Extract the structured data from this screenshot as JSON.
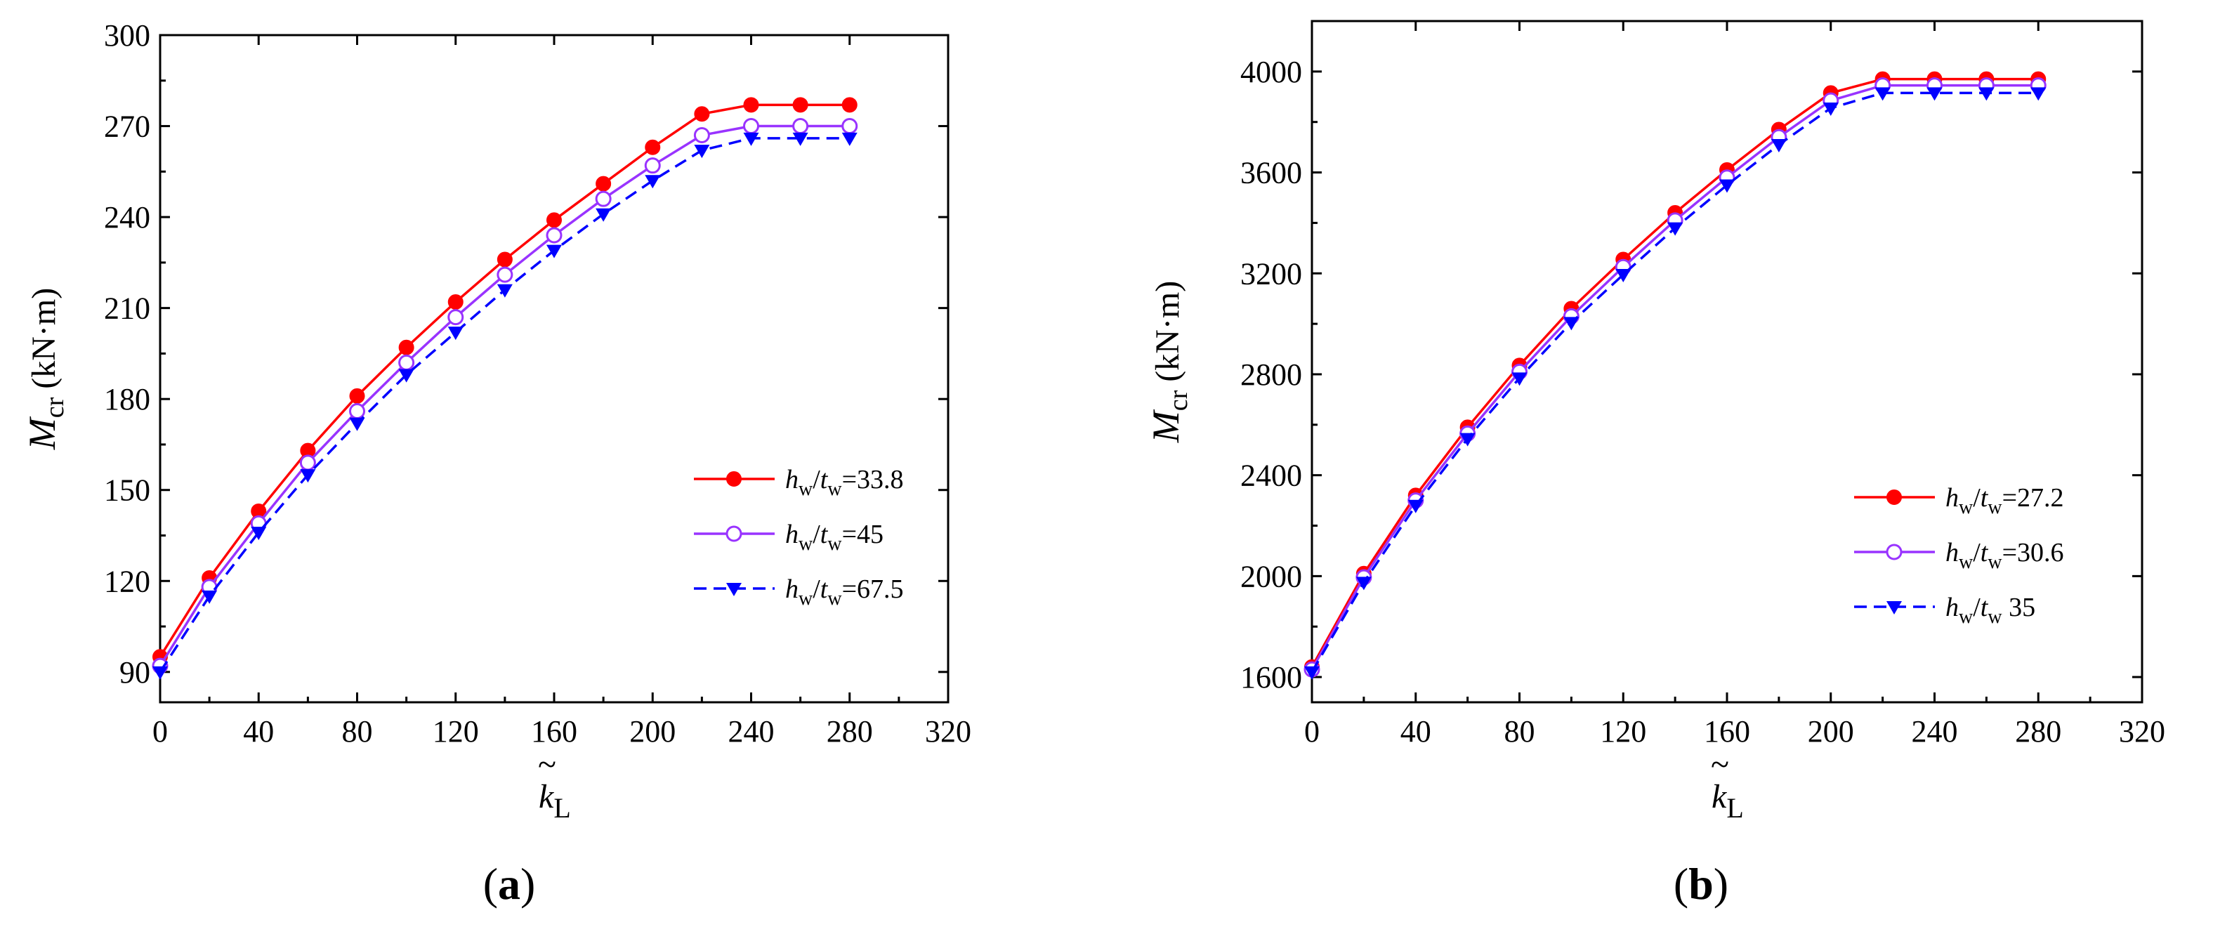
{
  "chart_data": [
    {
      "type": "line",
      "caption_open": "(",
      "caption_letter": "a",
      "caption_close": ")",
      "xlabel_main": "k",
      "xlabel_tilde": "~",
      "xlabel_sub": "L",
      "ylabel_main": "M",
      "ylabel_sub": "cr",
      "ylabel_unit": " (kN·m)",
      "xlim": [
        0,
        320
      ],
      "ylim": [
        80,
        300
      ],
      "xticks": [
        0,
        40,
        80,
        120,
        160,
        200,
        240,
        280,
        320
      ],
      "yticks": [
        90,
        120,
        150,
        180,
        210,
        240,
        270,
        300
      ],
      "x": [
        0,
        20,
        40,
        60,
        80,
        100,
        120,
        140,
        160,
        180,
        200,
        220,
        240,
        260,
        280
      ],
      "legend_position": "center-right",
      "series": [
        {
          "name": "hw/tw=33.8",
          "label_h": "h",
          "label_hsub": "w",
          "label_slash": "/",
          "label_t": "t",
          "label_tsub": "w",
          "label_eq": "=33.8",
          "color": "#ff0000",
          "marker": "filled-circle",
          "dash": false,
          "values": [
            95,
            121,
            143,
            163,
            181,
            197,
            212,
            226,
            239,
            251,
            263,
            274,
            277,
            277,
            277
          ]
        },
        {
          "name": "hw/tw=45",
          "label_h": "h",
          "label_hsub": "w",
          "label_slash": "/",
          "label_t": "t",
          "label_tsub": "w",
          "label_eq": "=45",
          "color": "#9933ff",
          "marker": "open-circle",
          "dash": false,
          "values": [
            92,
            118,
            139,
            159,
            176,
            192,
            207,
            221,
            234,
            246,
            257,
            267,
            270,
            270,
            270
          ]
        },
        {
          "name": "hw/tw=67.5",
          "label_h": "h",
          "label_hsub": "w",
          "label_slash": "/",
          "label_t": "t",
          "label_tsub": "w",
          "label_eq": "=67.5",
          "color": "#0000ff",
          "marker": "filled-triangle-down",
          "dash": true,
          "values": [
            90,
            115,
            136,
            155,
            172,
            188,
            202,
            216,
            229,
            241,
            252,
            262,
            266,
            266,
            266
          ]
        }
      ]
    },
    {
      "type": "line",
      "caption_open": "(",
      "caption_letter": "b",
      "caption_close": ")",
      "xlabel_main": "k",
      "xlabel_tilde": "~",
      "xlabel_sub": "L",
      "ylabel_main": "M",
      "ylabel_sub": "cr",
      "ylabel_unit": " (kN·m)",
      "xlim": [
        0,
        320
      ],
      "ylim": [
        1500,
        4200
      ],
      "xticks": [
        0,
        40,
        80,
        120,
        160,
        200,
        240,
        280,
        320
      ],
      "yticks": [
        1600,
        2000,
        2400,
        2800,
        3200,
        3600,
        4000
      ],
      "x": [
        0,
        20,
        40,
        60,
        80,
        100,
        120,
        140,
        160,
        180,
        200,
        220,
        240,
        260,
        280
      ],
      "legend_position": "bottom-right",
      "series": [
        {
          "name": "hw/tw=27.2",
          "label_h": "h",
          "label_hsub": "w",
          "label_slash": "/",
          "label_t": "t",
          "label_tsub": "w",
          "label_eq": "=27.2",
          "color": "#ff0000",
          "marker": "filled-circle",
          "dash": false,
          "values": [
            1640,
            2010,
            2320,
            2590,
            2835,
            3060,
            3255,
            3440,
            3610,
            3770,
            3915,
            3970,
            3970,
            3970,
            3970
          ]
        },
        {
          "name": "hw/tw=30.6",
          "label_h": "h",
          "label_hsub": "w",
          "label_slash": "/",
          "label_t": "t",
          "label_tsub": "w",
          "label_eq": "=30.6",
          "color": "#9933ff",
          "marker": "open-circle",
          "dash": false,
          "values": [
            1630,
            1995,
            2300,
            2565,
            2810,
            3030,
            3225,
            3410,
            3580,
            3740,
            3885,
            3945,
            3945,
            3945,
            3945
          ]
        },
        {
          "name": "hw/tw 35",
          "label_h": "h",
          "label_hsub": "w",
          "label_slash": "/",
          "label_t": "t",
          "label_tsub": "w",
          "label_eq": "  35",
          "color": "#0000ff",
          "marker": "filled-triangle-down",
          "dash": true,
          "values": [
            1620,
            1975,
            2280,
            2545,
            2785,
            3005,
            3195,
            3380,
            3550,
            3710,
            3855,
            3915,
            3915,
            3915,
            3915
          ]
        }
      ]
    }
  ]
}
